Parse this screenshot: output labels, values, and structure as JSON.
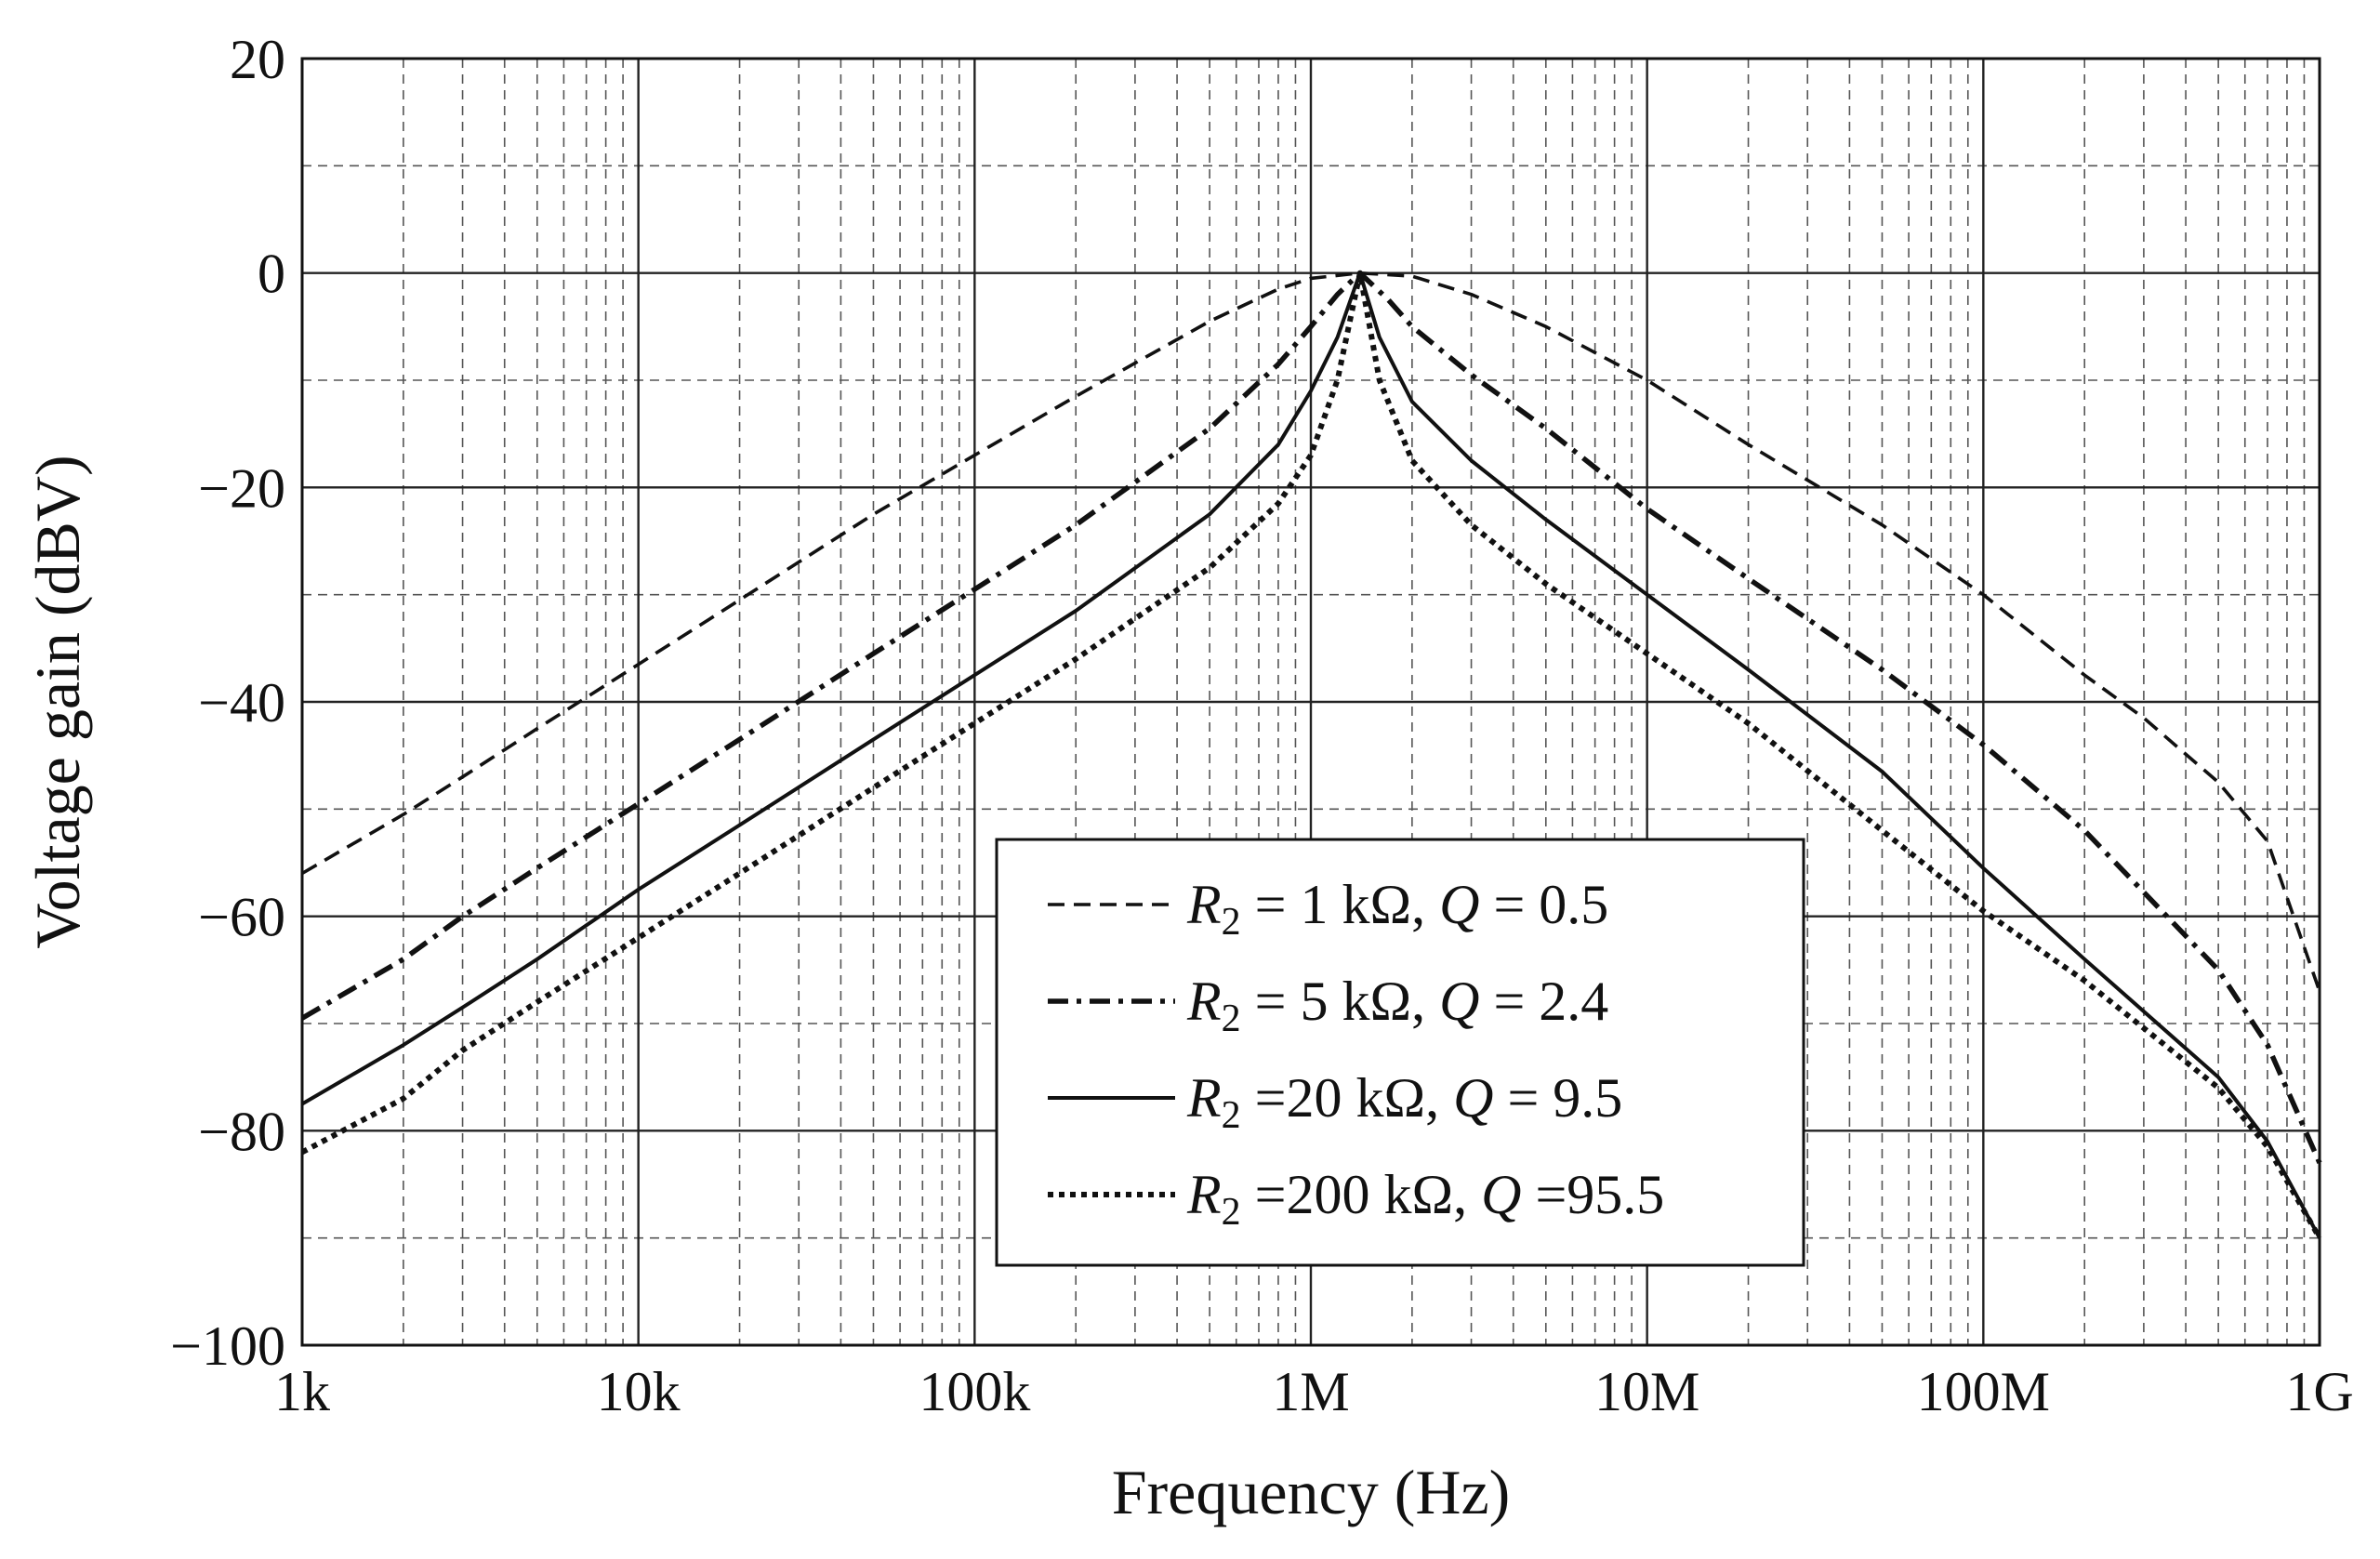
{
  "chart_data": {
    "type": "line",
    "title": "",
    "xlabel": "Frequency (Hz)",
    "ylabel": "Voltage gain (dBV)",
    "x_scale": "log",
    "xlim": [
      1000,
      1000000000
    ],
    "ylim": [
      -100,
      20
    ],
    "x_ticks": [
      {
        "value": 1000,
        "label": "1k"
      },
      {
        "value": 10000,
        "label": "10k"
      },
      {
        "value": 100000,
        "label": "100k"
      },
      {
        "value": 1000000,
        "label": "1M"
      },
      {
        "value": 10000000,
        "label": "10M"
      },
      {
        "value": 100000000,
        "label": "100M"
      },
      {
        "value": 1000000000,
        "label": "1G"
      }
    ],
    "y_ticks": [
      {
        "value": 20,
        "label": "20"
      },
      {
        "value": 0,
        "label": "0"
      },
      {
        "value": -20,
        "label": "−20"
      },
      {
        "value": -40,
        "label": "−40"
      },
      {
        "value": -60,
        "label": "−60"
      },
      {
        "value": -80,
        "label": "−80"
      },
      {
        "value": -100,
        "label": "−100"
      }
    ],
    "grid": true,
    "legend_position": "bottom-center",
    "series": [
      {
        "name": "R2 = 1 kΩ, Q = 0.5",
        "style": "dashed",
        "legend": {
          "r": "R",
          "sub": "2",
          "r_value": " = 1 kΩ,",
          "q": "Q",
          "q_value": " = 0.5"
        },
        "x": [
          1000,
          2000,
          3000,
          5000,
          10000,
          20000,
          50000,
          100000,
          200000,
          500000,
          800000,
          1000000,
          1400000,
          2000000,
          3000000,
          5000000,
          10000000,
          20000000,
          50000000,
          100000000,
          200000000,
          300000000,
          500000000,
          700000000,
          1000000000
        ],
        "y": [
          -56,
          -50.5,
          -47,
          -42.5,
          -36.5,
          -30.5,
          -22.5,
          -17,
          -11.5,
          -4.5,
          -1.5,
          -0.5,
          0,
          -0.3,
          -2,
          -5,
          -10,
          -16,
          -23.5,
          -30,
          -37.5,
          -41.5,
          -47.5,
          -53,
          -67
        ]
      },
      {
        "name": "R2 = 5 kΩ, Q = 2.4",
        "style": "dashdot",
        "legend": {
          "r": "R",
          "sub": "2",
          "r_value": " = 5 kΩ,",
          "q": "Q",
          "q_value": " = 2.4"
        },
        "x": [
          1000,
          2000,
          3000,
          5000,
          10000,
          20000,
          50000,
          100000,
          200000,
          500000,
          800000,
          1000000,
          1200000,
          1400000,
          1700000,
          2000000,
          3000000,
          5000000,
          10000000,
          20000000,
          50000000,
          100000000,
          200000000,
          500000000,
          700000000,
          1000000000
        ],
        "y": [
          -69.5,
          -64,
          -60,
          -55.5,
          -49.5,
          -43.5,
          -35.5,
          -29.5,
          -23.5,
          -14.5,
          -8.5,
          -5,
          -2,
          0,
          -2.5,
          -5,
          -9.5,
          -14.5,
          -22,
          -28.5,
          -37,
          -44,
          -52,
          -65,
          -72,
          -83
        ]
      },
      {
        "name": "R2 = 20 kΩ, Q = 9.5",
        "style": "solid",
        "legend": {
          "r": "R",
          "sub": "2",
          "r_value": " =20 kΩ,",
          "q": "Q",
          "q_value": " = 9.5"
        },
        "x": [
          1000,
          2000,
          3000,
          5000,
          10000,
          20000,
          50000,
          100000,
          200000,
          500000,
          800000,
          1000000,
          1200000,
          1400000,
          1600000,
          2000000,
          3000000,
          5000000,
          10000000,
          20000000,
          50000000,
          100000000,
          200000000,
          500000000,
          700000000,
          1000000000
        ],
        "y": [
          -77.5,
          -72,
          -68.5,
          -64,
          -57.5,
          -51.5,
          -43.5,
          -37.5,
          -31.5,
          -22.5,
          -16,
          -11,
          -6,
          0,
          -6,
          -12,
          -17.5,
          -23,
          -30,
          -37,
          -46.5,
          -55.5,
          -64,
          -75,
          -81,
          -90
        ]
      },
      {
        "name": "R2 = 200 kΩ, Q = 95.5",
        "style": "dotted",
        "legend": {
          "r": "R",
          "sub": "2",
          "r_value": " =200 kΩ,",
          "q": "Q",
          "q_value": " =95.5"
        },
        "x": [
          1000,
          2000,
          3000,
          5000,
          10000,
          20000,
          50000,
          100000,
          200000,
          500000,
          800000,
          1000000,
          1200000,
          1400000,
          1600000,
          2000000,
          3000000,
          5000000,
          10000000,
          20000000,
          50000000,
          100000000,
          200000000,
          500000000,
          700000000,
          1000000000
        ],
        "y": [
          -82,
          -77,
          -72.5,
          -68,
          -62,
          -56,
          -48,
          -42,
          -36,
          -27.5,
          -21.5,
          -17,
          -10,
          0,
          -10,
          -17.5,
          -23.5,
          -29,
          -35.5,
          -42,
          -52,
          -59.5,
          -66,
          -76,
          -81.5,
          -90
        ]
      }
    ]
  }
}
